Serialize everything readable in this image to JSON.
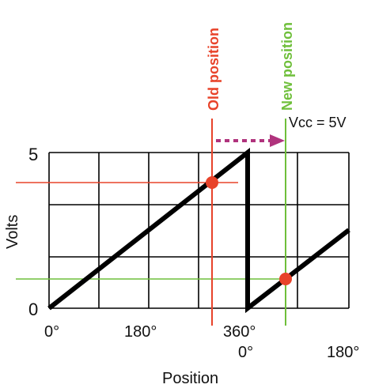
{
  "diagram": {
    "y_axis_label": "Volts",
    "x_axis_label": "Position",
    "y_ticks": [
      {
        "label": "5",
        "volts": 5
      },
      {
        "label": "0",
        "volts": 0
      }
    ],
    "x_ticks_first_turn": [
      {
        "label": "0°",
        "degrees": 0
      },
      {
        "label": "180°",
        "degrees": 180
      },
      {
        "label": "360°",
        "degrees": 360
      }
    ],
    "x_ticks_second_turn": [
      {
        "label": "0°",
        "degrees": 0
      },
      {
        "label": "180°",
        "degrees": 180
      }
    ],
    "supply_label": "Vcc = 5V",
    "old_position": {
      "label": "Old position",
      "color": "#e8432a"
    },
    "new_position": {
      "label": "New position",
      "color": "#6fbf3b"
    },
    "arrow_color": "#b0337d",
    "trace_color": "#000000",
    "grid_color": "#000000"
  }
}
